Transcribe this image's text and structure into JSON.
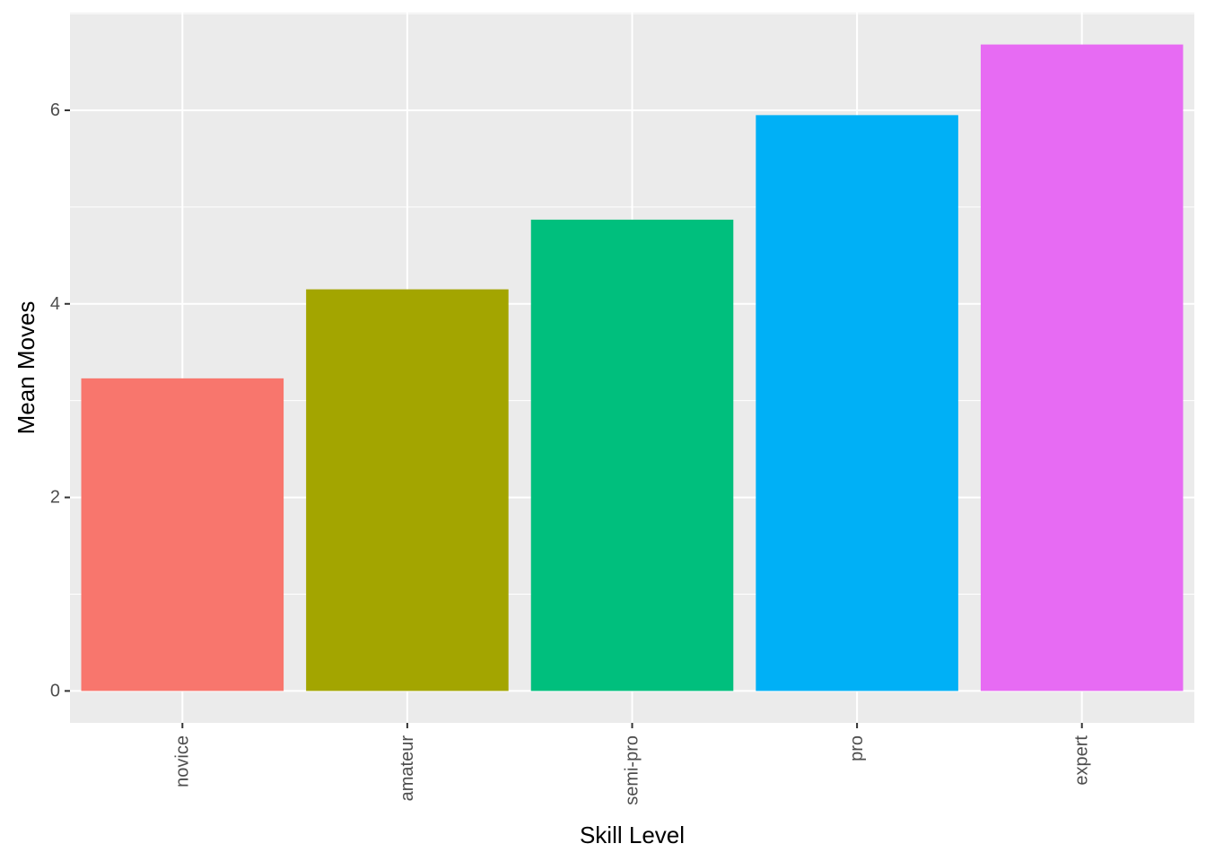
{
  "chart_data": {
    "type": "bar",
    "title": "",
    "xlabel": "Skill Level",
    "ylabel": "Mean Moves",
    "categories": [
      "novice",
      "amateur",
      "semi-pro",
      "pro",
      "expert"
    ],
    "values": [
      3.23,
      4.15,
      4.87,
      5.95,
      6.68
    ],
    "colors": [
      "#F8766D",
      "#A3A500",
      "#00BF7D",
      "#00B0F6",
      "#E76BF3"
    ],
    "ylim": [
      -0.33,
      7.01
    ],
    "yticks": [
      0,
      2,
      4,
      6
    ],
    "ytick_labels": [
      "0",
      "2",
      "4",
      "6"
    ],
    "grid": true,
    "legend": "none",
    "panel_background": "#EBEBEB",
    "grid_color": "#FFFFFF",
    "x_tick_label_rotation": "vertical"
  }
}
